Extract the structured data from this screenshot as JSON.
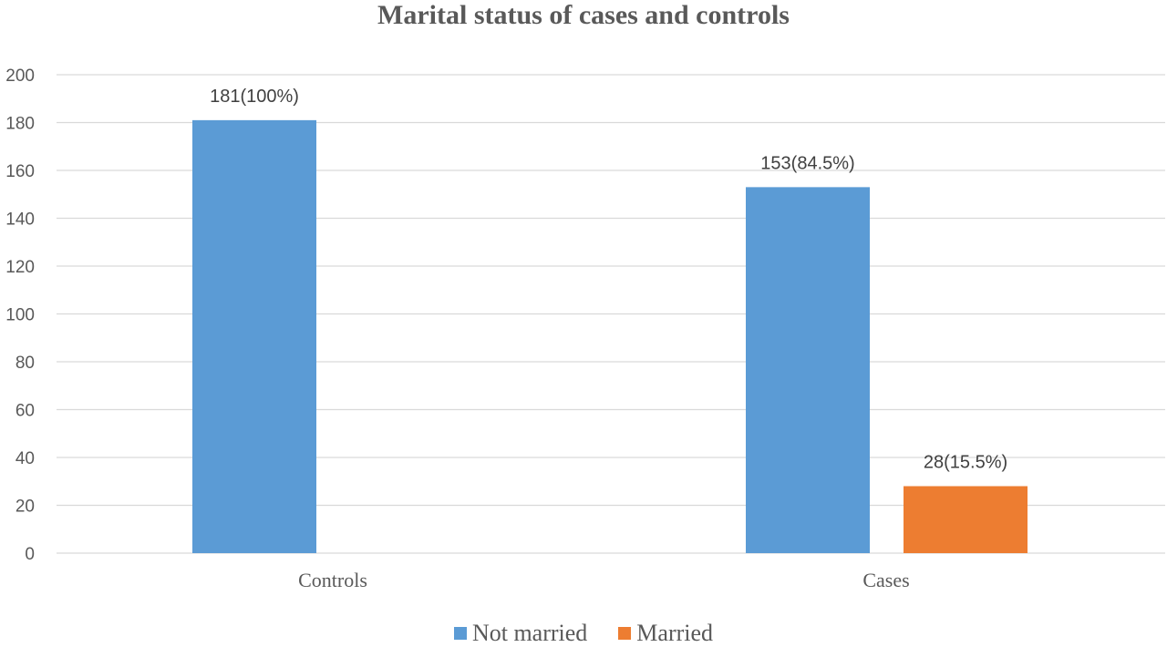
{
  "chart_data": {
    "type": "bar",
    "title": "Marital status of cases and controls",
    "categories": [
      "Controls",
      "Cases"
    ],
    "series": [
      {
        "name": "Not married",
        "color": "#5b9bd5",
        "values": [
          181,
          153
        ],
        "labels": [
          "181(100%)",
          "153(84.5%)"
        ]
      },
      {
        "name": "Married",
        "color": "#ed7d31",
        "values": [
          0,
          28
        ],
        "labels": [
          "",
          "28(15.5%)"
        ]
      }
    ],
    "ylim": [
      0,
      200
    ],
    "yticks": [
      0,
      20,
      40,
      60,
      80,
      100,
      120,
      140,
      160,
      180,
      200
    ],
    "grid": true,
    "legend_position": "bottom"
  }
}
